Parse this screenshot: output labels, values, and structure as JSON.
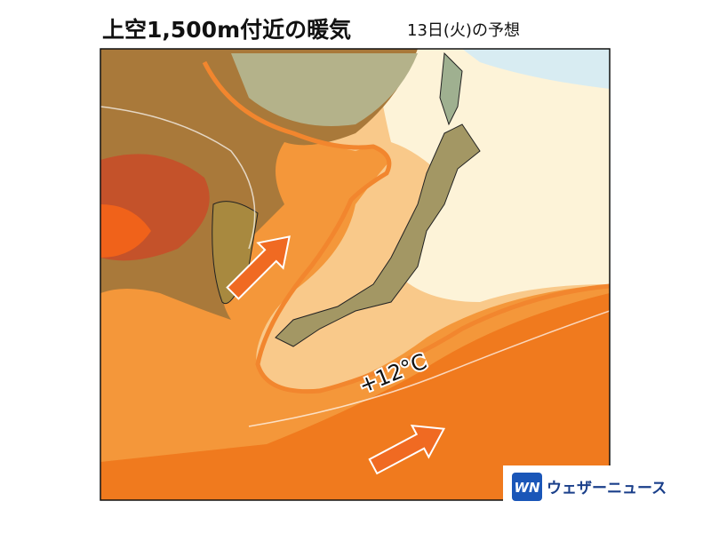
{
  "title": "上空1,500m付近の暖気",
  "subtitle": "13日(火)の予想",
  "contour_label": "+12°C",
  "logo": {
    "mark": "WN",
    "name": "ウェザーニュース"
  }
}
